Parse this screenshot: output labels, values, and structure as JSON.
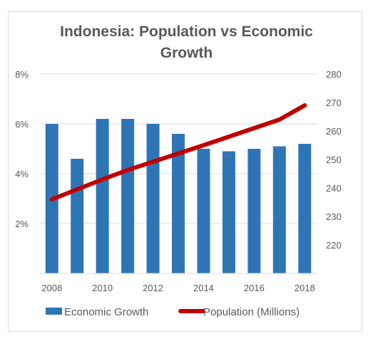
{
  "chart_data": {
    "type": "bar",
    "title_line1": "Indonesia: Population vs Economic",
    "title_line2": "Growth",
    "x": [
      2008,
      2009,
      2010,
      2011,
      2012,
      2013,
      2014,
      2015,
      2016,
      2017,
      2018
    ],
    "x_tick_labels": [
      "2008",
      "2010",
      "2012",
      "2014",
      "2016",
      "2018"
    ],
    "series": [
      {
        "name": "Economic Growth",
        "type": "bar",
        "axis": "left",
        "color": "#2e75b6",
        "values": [
          6.0,
          4.6,
          6.2,
          6.2,
          6.0,
          5.6,
          5.0,
          4.9,
          5.0,
          5.1,
          5.2
        ]
      },
      {
        "name": "Population (Millions)",
        "type": "line",
        "axis": "right",
        "color": "#c00000",
        "values": [
          236,
          239.5,
          243,
          246.3,
          249.2,
          252.1,
          255,
          258,
          261,
          264,
          269
        ]
      }
    ],
    "y_left": {
      "ylim": [
        0,
        8
      ],
      "tick_labels": [
        "2%",
        "4%",
        "6%",
        "8%"
      ],
      "tick_values": [
        2,
        4,
        6,
        8
      ]
    },
    "y_right": {
      "ylim": [
        210,
        280
      ],
      "tick_labels": [
        "220",
        "230",
        "240",
        "250",
        "260",
        "270",
        "280"
      ],
      "tick_values": [
        220,
        230,
        240,
        250,
        260,
        270,
        280
      ]
    },
    "grid": "horizontal",
    "legend_position": "bottom"
  }
}
